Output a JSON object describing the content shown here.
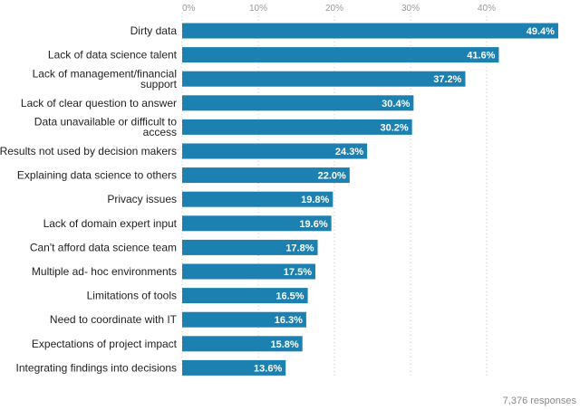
{
  "chart_data": {
    "type": "bar",
    "orientation": "horizontal",
    "categories": [
      "Dirty data",
      "Lack of data science talent",
      [
        "Lack of management/financial",
        "support"
      ],
      "Lack of clear question to answer",
      [
        "Data unavailable or difficult to",
        "access"
      ],
      "Results not used by decision makers",
      "Explaining data science to others",
      "Privacy issues",
      "Lack of domain expert input",
      "Can't afford data science team",
      "Multiple ad- hoc environments",
      "Limitations of tools",
      "Need to coordinate with IT",
      "Expectations of project impact",
      "Integrating findings into decisions"
    ],
    "values": [
      49.4,
      41.6,
      37.2,
      30.4,
      30.2,
      24.3,
      22.0,
      19.8,
      19.6,
      17.8,
      17.5,
      16.5,
      16.3,
      15.8,
      13.6
    ],
    "value_labels": [
      "49.4%",
      "41.6%",
      "37.2%",
      "30.4%",
      "30.2%",
      "24.3%",
      "22.0%",
      "19.8%",
      "19.6%",
      "17.8%",
      "17.5%",
      "16.5%",
      "16.3%",
      "15.8%",
      "13.6%"
    ],
    "x_ticks": [
      0,
      10,
      20,
      30,
      40
    ],
    "x_tick_labels": [
      "0%",
      "10%",
      "20%",
      "30%",
      "40%"
    ],
    "xlim": [
      0,
      50
    ],
    "grid": true,
    "grid_style": "dotted",
    "legend": "none",
    "title": "",
    "xlabel": "",
    "ylabel": "",
    "bar_color": "#1c80b0",
    "footnote": "7,376 responses"
  }
}
